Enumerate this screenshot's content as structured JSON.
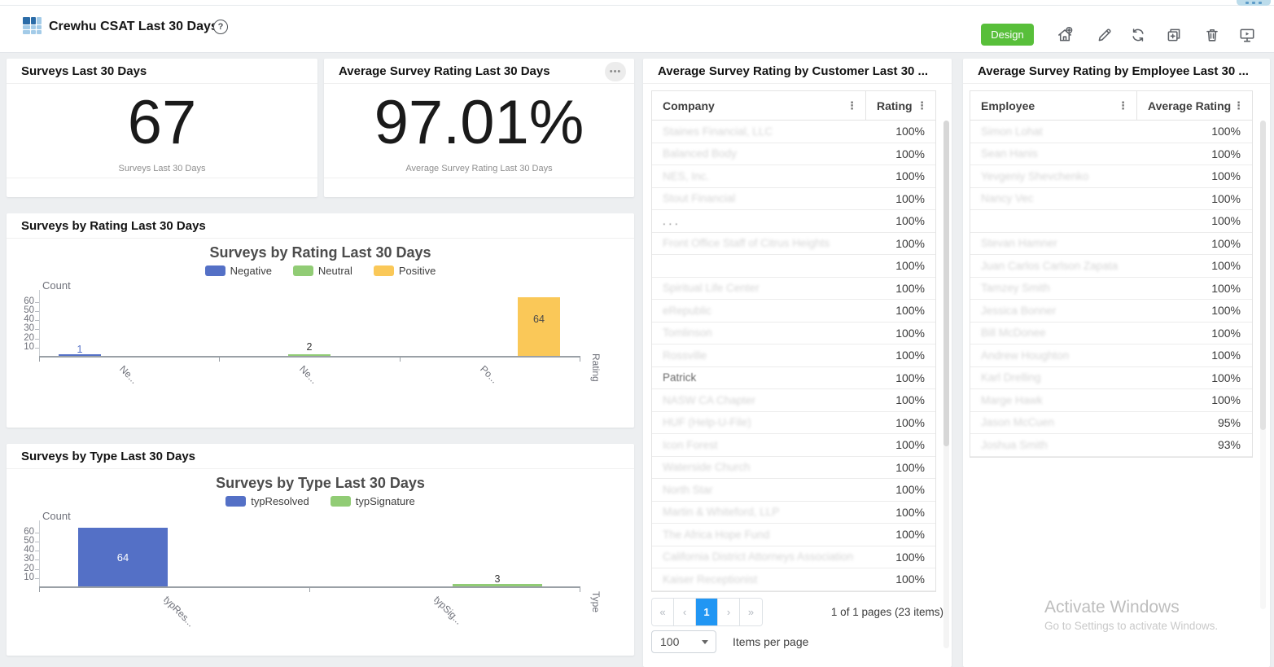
{
  "icons": {
    "kebab": "⋮",
    "help": "?",
    "ellipsis": "•••",
    "first": "«",
    "prev": "‹",
    "next": "›",
    "last": "»"
  },
  "header": {
    "title": "Crewhu CSAT Last 30 Days",
    "design_button_label": "Design",
    "design_button_color": "#58bf3a",
    "tools": [
      "add-to-home",
      "edit",
      "refresh",
      "duplicate",
      "delete",
      "present"
    ]
  },
  "stat_cards": [
    {
      "title": "Surveys Last 30 Days",
      "value": "67",
      "caption": "Surveys Last 30 Days"
    },
    {
      "title": "Average Survey Rating Last 30 Days",
      "value": "97.01%",
      "caption": "Average Survey Rating Last 30 Days"
    }
  ],
  "chart_data": [
    {
      "type": "bar",
      "card_title": "Surveys by Rating Last 30 Days",
      "title": "Surveys by Rating Last 30 Days",
      "categories": [
        "Negative",
        "Neutral",
        "Positive"
      ],
      "values": [
        1,
        2,
        64
      ],
      "series_colors": [
        "#5470c6",
        "#91cc75",
        "#fac858"
      ],
      "legend": [
        "Negative",
        "Neutral",
        "Positive"
      ],
      "legend_position": "top",
      "xlabel": "Rating",
      "ylabel": "Count",
      "yticks": [
        10,
        20,
        30,
        40,
        50,
        60
      ],
      "ylim": [
        0,
        67
      ],
      "x_tick_labels": [
        "Ne...",
        "Ne...",
        "Po..."
      ],
      "grid": false
    },
    {
      "type": "bar",
      "card_title": "Surveys by Type Last 30 Days",
      "title": "Surveys by Type Last 30 Days",
      "categories": [
        "typResolved",
        "typSignature"
      ],
      "values": [
        64,
        3
      ],
      "series_colors": [
        "#5470c6",
        "#91cc75"
      ],
      "legend": [
        "typResolved",
        "typSignature"
      ],
      "legend_position": "top",
      "xlabel": "Type",
      "ylabel": "Count",
      "yticks": [
        10,
        20,
        30,
        40,
        50,
        60
      ],
      "ylim": [
        0,
        67
      ],
      "x_tick_labels": [
        "typRes...",
        "typSig..."
      ],
      "grid": false
    }
  ],
  "customer_table": {
    "title": "Average Survey Rating by Customer Last 30 ...",
    "columns": [
      "Company",
      "Rating"
    ],
    "rows": [
      {
        "name": "Staines Financial, LLC",
        "value": "100%",
        "style": "faded"
      },
      {
        "name": "Balanced Body",
        "value": "100%",
        "style": "faded"
      },
      {
        "name": "NES, Inc.",
        "value": "100%",
        "style": "faded"
      },
      {
        "name": "Stout Financial",
        "value": "100%",
        "style": "faded"
      },
      {
        "name": ". . .",
        "value": "100%",
        "style": "plain"
      },
      {
        "name": "Front Office Staff of Citrus Heights",
        "value": "100%",
        "style": "faded"
      },
      {
        "name": "",
        "value": "100%",
        "style": "faded"
      },
      {
        "name": "Spiritual Life Center",
        "value": "100%",
        "style": "faded"
      },
      {
        "name": "eRepublic",
        "value": "100%",
        "style": "faded"
      },
      {
        "name": "Tomlinson",
        "value": "100%",
        "style": "faded"
      },
      {
        "name": "Rossville",
        "value": "100%",
        "style": "faded"
      },
      {
        "name": "Patrick",
        "value": "100%",
        "style": "plain"
      },
      {
        "name": "NASW CA Chapter",
        "value": "100%",
        "style": "faded"
      },
      {
        "name": "HUF (Help-U-File)",
        "value": "100%",
        "style": "faded"
      },
      {
        "name": "Icon Forest",
        "value": "100%",
        "style": "faded"
      },
      {
        "name": "Waterside Church",
        "value": "100%",
        "style": "faded"
      },
      {
        "name": "North Star",
        "value": "100%",
        "style": "faded"
      },
      {
        "name": "Martin & Whiteford, LLP",
        "value": "100%",
        "style": "faded"
      },
      {
        "name": "The Africa Hope Fund",
        "value": "100%",
        "style": "faded"
      },
      {
        "name": "California District Attorneys Association",
        "value": "100%",
        "style": "faded"
      },
      {
        "name": "Kaiser Receptionist",
        "value": "100%",
        "style": "faded"
      }
    ],
    "pagination": {
      "page": "1",
      "summary": "1 of 1 pages (23 items)",
      "page_size": "100",
      "page_size_label": "Items per page"
    }
  },
  "employee_table": {
    "title": "Average Survey Rating by Employee Last 30 ...",
    "columns": [
      "Employee",
      "Average Rating"
    ],
    "rows": [
      {
        "name": "Simon Lohat",
        "value": "100%",
        "style": "faded"
      },
      {
        "name": "Sean Hanis",
        "value": "100%",
        "style": "faded"
      },
      {
        "name": "Yevgeniy Shevchenko",
        "value": "100%",
        "style": "faded"
      },
      {
        "name": "Nancy Vec",
        "value": "100%",
        "style": "faded"
      },
      {
        "name": "",
        "value": "100%",
        "style": "faded"
      },
      {
        "name": "Stevan Hamner",
        "value": "100%",
        "style": "faded"
      },
      {
        "name": "Juan Carlos Carlson Zapata",
        "value": "100%",
        "style": "faded"
      },
      {
        "name": "Tamzey Smith",
        "value": "100%",
        "style": "faded"
      },
      {
        "name": "Jessica Bonner",
        "value": "100%",
        "style": "faded"
      },
      {
        "name": "Bill McDonee",
        "value": "100%",
        "style": "faded"
      },
      {
        "name": "Andrew Houghton",
        "value": "100%",
        "style": "faded"
      },
      {
        "name": "Karl Drelling",
        "value": "100%",
        "style": "faded"
      },
      {
        "name": "Marge Hawk",
        "value": "100%",
        "style": "faded"
      },
      {
        "name": "Jason McCuen",
        "value": "95%",
        "style": "faded"
      },
      {
        "name": "Joshua Smith",
        "value": "93%",
        "style": "faded"
      }
    ]
  },
  "watermark": {
    "line1": "Activate Windows",
    "line2": "Go to Settings to activate Windows."
  }
}
